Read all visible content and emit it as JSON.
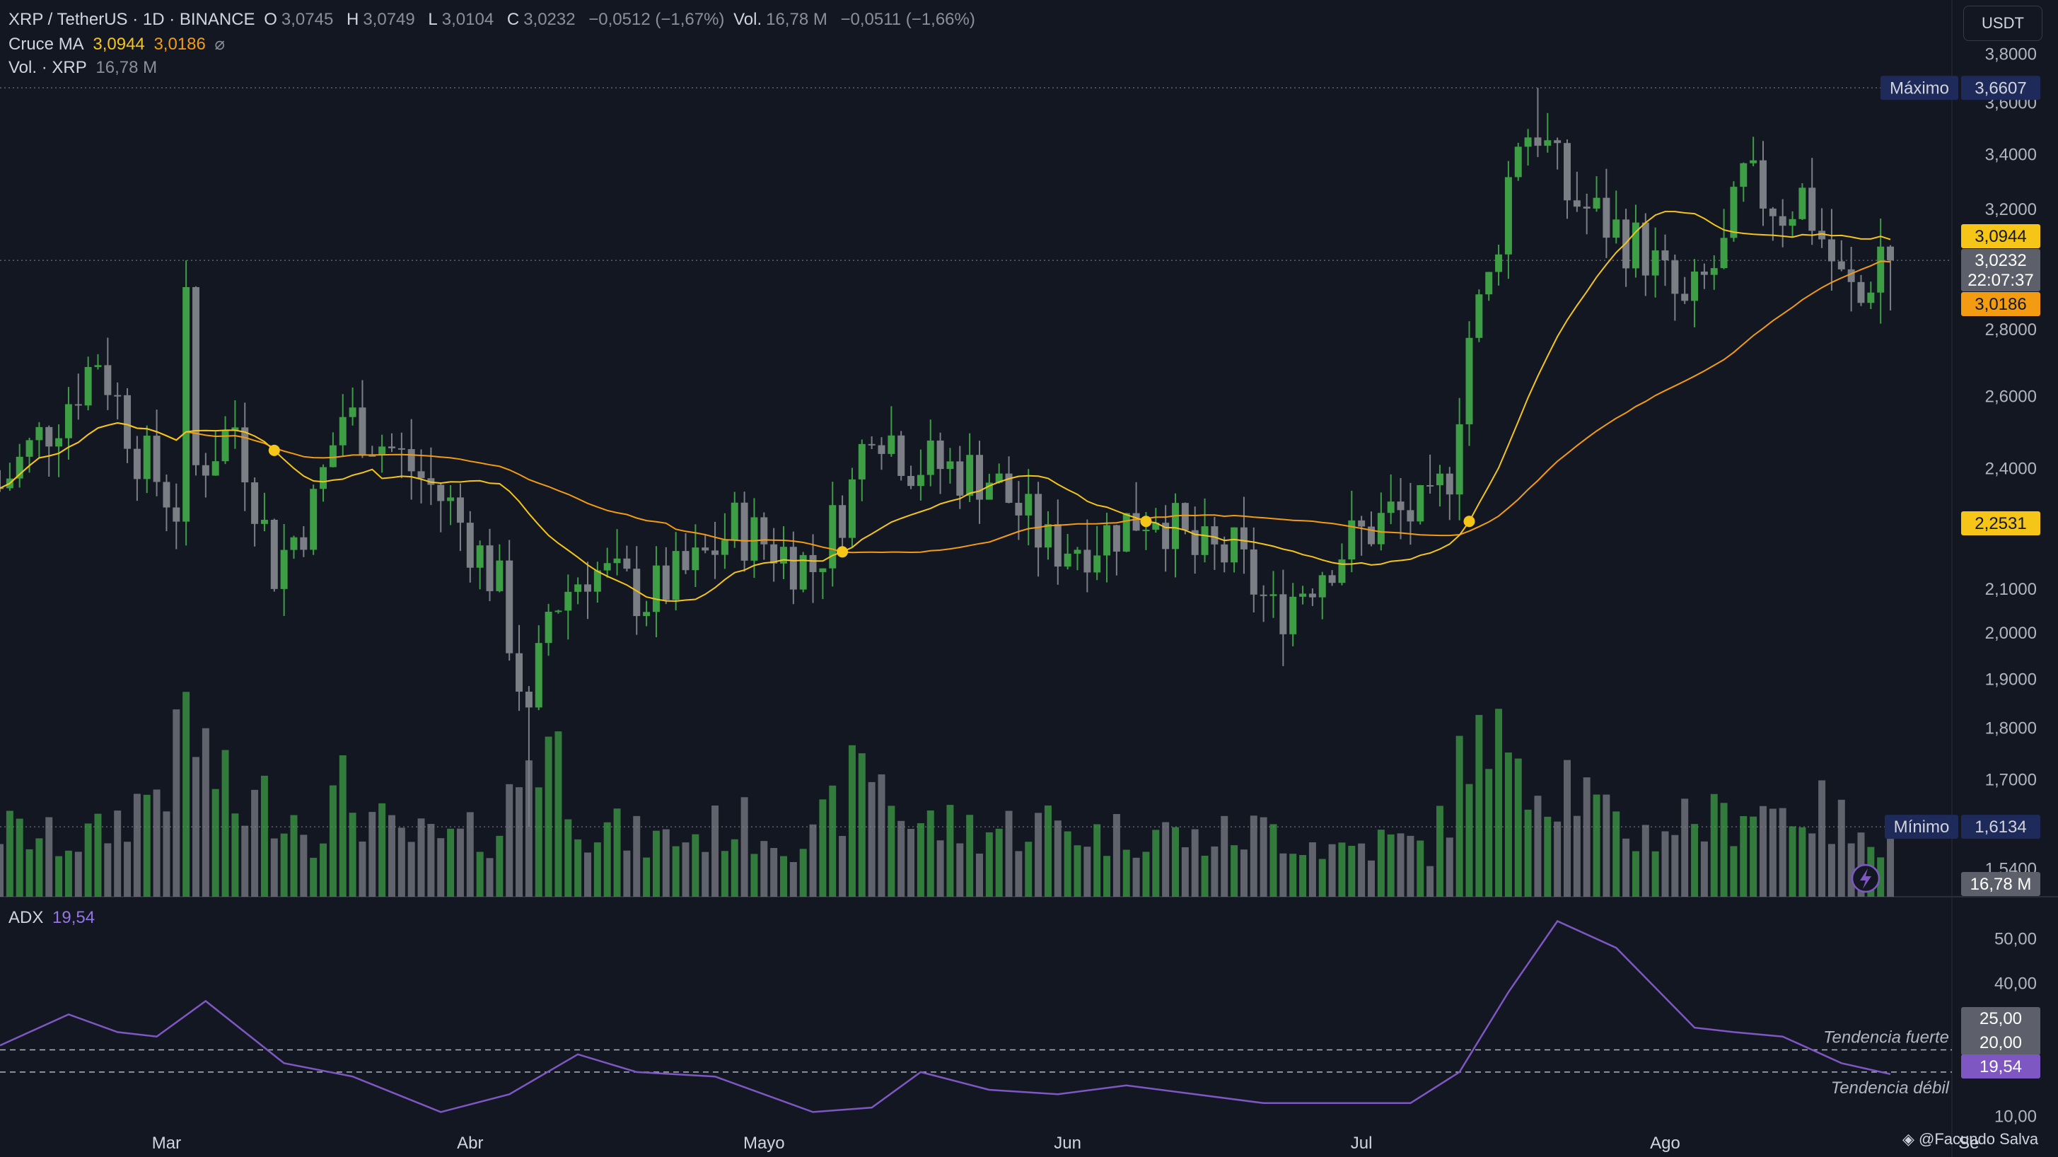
{
  "header": {
    "symbol": "XRP / TetherUS · 1D · BINANCE",
    "o_label": "O",
    "o_value": "3,0745",
    "h_label": "H",
    "h_value": "3,0749",
    "l_label": "L",
    "l_value": "3,0104",
    "c_label": "C",
    "c_value": "3,0232",
    "change": "−0,0512 (−1,67%)",
    "vol_label": "Vol.",
    "vol_value": "16,78 M",
    "vol_change": "−0,0511 (−1,66%)",
    "ma_label": "Cruce MA",
    "ma_fast_value": "3,0944",
    "ma_slow_value": "3,0186",
    "ma_icon": "⌀",
    "vol_row_label": "Vol. · XRP",
    "vol_row_value": "16,78 M"
  },
  "currency_button": "USDT",
  "adx": {
    "label": "ADX",
    "value": "19,54",
    "strong_label": "Tendencia fuerte",
    "weak_label": "Tendencia débil",
    "levels": [
      25,
      20
    ],
    "axis_ticks": [
      "50,00",
      "40,00",
      "10,00"
    ],
    "level_tags": [
      "25,00",
      "20,00"
    ],
    "current_tag": "19,54"
  },
  "price_axis": {
    "ticks": [
      "3,8000",
      "3,6000",
      "3,4000",
      "3,2000",
      "2,8000",
      "2,6000",
      "2,4000",
      "2,1000",
      "2,0000",
      "1,9000",
      "1,8000",
      "1,7000",
      "1,5400"
    ],
    "max_label": "Máximo",
    "max_value": "3,6607",
    "min_label": "Mínimo",
    "min_value": "1,6134",
    "ma_fast_tag": "3,0944",
    "price_tag": "3,0232",
    "countdown": "22:07:37",
    "ma_slow_tag": "3,0186",
    "cross_tag": "2,2531",
    "vol_tag": "16,78 M"
  },
  "time_axis": [
    "Mar",
    "Abr",
    "Mayo",
    "Jun",
    "Jul",
    "Ago",
    "Se"
  ],
  "credit": "◈ @Facundo Salva",
  "colors": {
    "up": "#3e9e45",
    "down": "#7b7e85",
    "ma_fast": "#f5c518",
    "ma_slow": "#f39c12",
    "adx": "#7e57c2",
    "bg": "#131722"
  },
  "chart_data": {
    "type": "candlestick",
    "symbol": "XRP / TetherUS",
    "interval": "1D",
    "exchange": "BINANCE",
    "y_scale": "log",
    "ylim": [
      1.5,
      3.85
    ],
    "x_range": [
      "2025-02-12",
      "2025-08-31"
    ],
    "vol_ylim": [
      0,
      33
    ],
    "adx_ylim": [
      5,
      56
    ],
    "anchors": [
      [
        "2025-02-12",
        2.35,
        11
      ],
      [
        "2025-02-18",
        2.55,
        9
      ],
      [
        "2025-02-22",
        2.72,
        10
      ],
      [
        "2025-02-26",
        2.45,
        15
      ],
      [
        "2025-03-02",
        2.3,
        22
      ],
      [
        "2025-03-03",
        2.85,
        30
      ],
      [
        "2025-03-04",
        2.4,
        26
      ],
      [
        "2025-03-08",
        2.52,
        14
      ],
      [
        "2025-03-12",
        2.15,
        16
      ],
      [
        "2025-03-16",
        2.3,
        11
      ],
      [
        "2025-03-19",
        2.55,
        17
      ],
      [
        "2025-03-24",
        2.45,
        10
      ],
      [
        "2025-03-30",
        2.3,
        9
      ],
      [
        "2025-04-04",
        2.1,
        11
      ],
      [
        "2025-04-07",
        1.8,
        24
      ],
      [
        "2025-04-09",
        2.05,
        26
      ],
      [
        "2025-04-13",
        2.15,
        12
      ],
      [
        "2025-04-19",
        2.08,
        9
      ],
      [
        "2025-04-24",
        2.15,
        10
      ],
      [
        "2025-04-28",
        2.25,
        12
      ],
      [
        "2025-05-06",
        2.15,
        9
      ],
      [
        "2025-05-10",
        2.35,
        18
      ],
      [
        "2025-05-12",
        2.55,
        22
      ],
      [
        "2025-05-16",
        2.42,
        12
      ],
      [
        "2025-05-24",
        2.38,
        11
      ],
      [
        "2025-05-30",
        2.2,
        12
      ],
      [
        "2025-06-04",
        2.22,
        10
      ],
      [
        "2025-06-10",
        2.3,
        11
      ],
      [
        "2025-06-14",
        2.18,
        9
      ],
      [
        "2025-06-18",
        2.18,
        10
      ],
      [
        "2025-06-22",
        2.04,
        11
      ],
      [
        "2025-06-28",
        2.18,
        8
      ],
      [
        "2025-07-04",
        2.28,
        9
      ],
      [
        "2025-07-08",
        2.28,
        8
      ],
      [
        "2025-07-10",
        2.4,
        14
      ],
      [
        "2025-07-12",
        2.78,
        28
      ],
      [
        "2025-07-14",
        2.95,
        19
      ],
      [
        "2025-07-17",
        3.48,
        31
      ],
      [
        "2025-07-19",
        3.5,
        18
      ],
      [
        "2025-07-22",
        3.25,
        20
      ],
      [
        "2025-07-26",
        3.15,
        12
      ],
      [
        "2025-07-30",
        3.05,
        10
      ],
      [
        "2025-08-03",
        2.85,
        13
      ],
      [
        "2025-08-07",
        3.05,
        12
      ],
      [
        "2025-08-09",
        3.3,
        16
      ],
      [
        "2025-08-13",
        3.2,
        14
      ],
      [
        "2025-08-15",
        3.25,
        15
      ],
      [
        "2025-08-19",
        2.95,
        12
      ],
      [
        "2025-08-21",
        2.88,
        8
      ],
      [
        "2025-08-23",
        3.07,
        11
      ],
      [
        "2025-08-24",
        3.02,
        16
      ]
    ],
    "max": 3.6607,
    "min": 1.6134,
    "last_price": 3.0232,
    "ma_fast_last": 3.0944,
    "ma_slow_last": 3.0186,
    "ma_cross_marker": 2.2531,
    "adx_series": [
      [
        "2025-02-12",
        26
      ],
      [
        "2025-02-19",
        33
      ],
      [
        "2025-02-24",
        29
      ],
      [
        "2025-02-28",
        28
      ],
      [
        "2025-03-05",
        36
      ],
      [
        "2025-03-13",
        22
      ],
      [
        "2025-03-20",
        19
      ],
      [
        "2025-03-29",
        11
      ],
      [
        "2025-04-05",
        15
      ],
      [
        "2025-04-12",
        24
      ],
      [
        "2025-04-18",
        20
      ],
      [
        "2025-04-26",
        19
      ],
      [
        "2025-05-06",
        11
      ],
      [
        "2025-05-12",
        12
      ],
      [
        "2025-05-17",
        20
      ],
      [
        "2025-05-24",
        16
      ],
      [
        "2025-05-31",
        15
      ],
      [
        "2025-06-07",
        17
      ],
      [
        "2025-06-14",
        15
      ],
      [
        "2025-06-21",
        13
      ],
      [
        "2025-06-28",
        13
      ],
      [
        "2025-07-06",
        13
      ],
      [
        "2025-07-11",
        20
      ],
      [
        "2025-07-16",
        38
      ],
      [
        "2025-07-21",
        54
      ],
      [
        "2025-07-27",
        48
      ],
      [
        "2025-08-04",
        30
      ],
      [
        "2025-08-08",
        29
      ],
      [
        "2025-08-13",
        28
      ],
      [
        "2025-08-19",
        22
      ],
      [
        "2025-08-24",
        19.54
      ]
    ]
  }
}
